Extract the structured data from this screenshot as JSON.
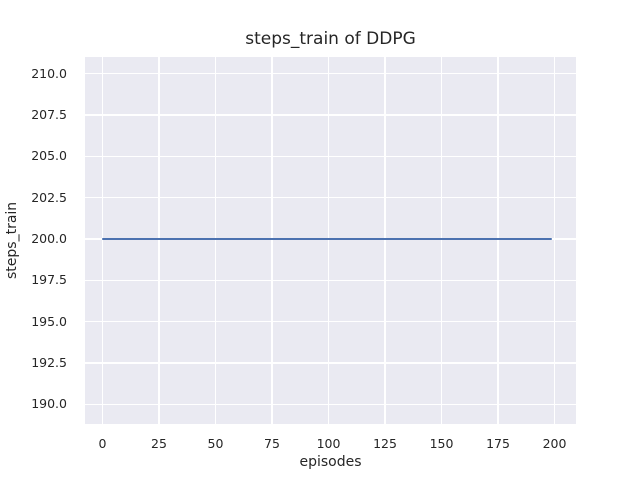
{
  "chart_data": {
    "type": "line",
    "title": "steps_train of DDPG",
    "xlabel": "episodes",
    "ylabel": "steps_train",
    "xlim": [
      -7.74,
      209.5
    ],
    "ylim": [
      188.82,
      211.01
    ],
    "xticks": [
      0,
      25,
      50,
      75,
      100,
      125,
      150,
      175,
      200
    ],
    "xtick_labels": [
      "0",
      "25",
      "50",
      "75",
      "100",
      "125",
      "150",
      "175",
      "200"
    ],
    "yticks": [
      190,
      192.5,
      195,
      197.5,
      200,
      202.5,
      205,
      207.5,
      210
    ],
    "ytick_labels": [
      "190.0",
      "192.5",
      "195.0",
      "197.5",
      "200.0",
      "202.5",
      "205.0",
      "207.5",
      "210.0"
    ],
    "grid": true,
    "legend": null,
    "series": [
      {
        "name": "steps_train",
        "color": "#4C72B0",
        "x_start": 0,
        "x_end": 199,
        "y_constant": 200,
        "description": "constant line at 200 steps for every episode from 0 to 199"
      }
    ]
  },
  "colors": {
    "figure_bg": "#FFFFFF",
    "axes_bg": "#EAEAF2",
    "grid": "#FFFFFF",
    "text": "#262626",
    "line": "#4C72B0"
  }
}
